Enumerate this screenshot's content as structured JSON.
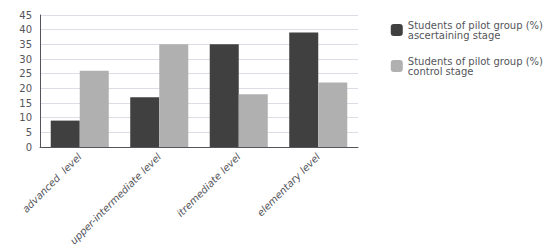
{
  "chart_data": {
    "type": "bar",
    "categories": [
      "advanced  level",
      "upper-intermediate level",
      "itremediate level",
      "elementary level"
    ],
    "series": [
      {
        "name": "Students of pilot group (%)\nascertaining stage",
        "color": "#404040",
        "values": [
          9,
          17,
          35,
          39
        ]
      },
      {
        "name": "Students of pilot group (%)\ncontrol stage",
        "color": "#b0b0b0",
        "values": [
          26,
          35,
          18,
          22
        ]
      }
    ],
    "ylim": [
      0,
      45
    ],
    "yticks": [
      0,
      5,
      10,
      15,
      20,
      25,
      30,
      35,
      40,
      45
    ],
    "grid": true,
    "legend": "right"
  }
}
